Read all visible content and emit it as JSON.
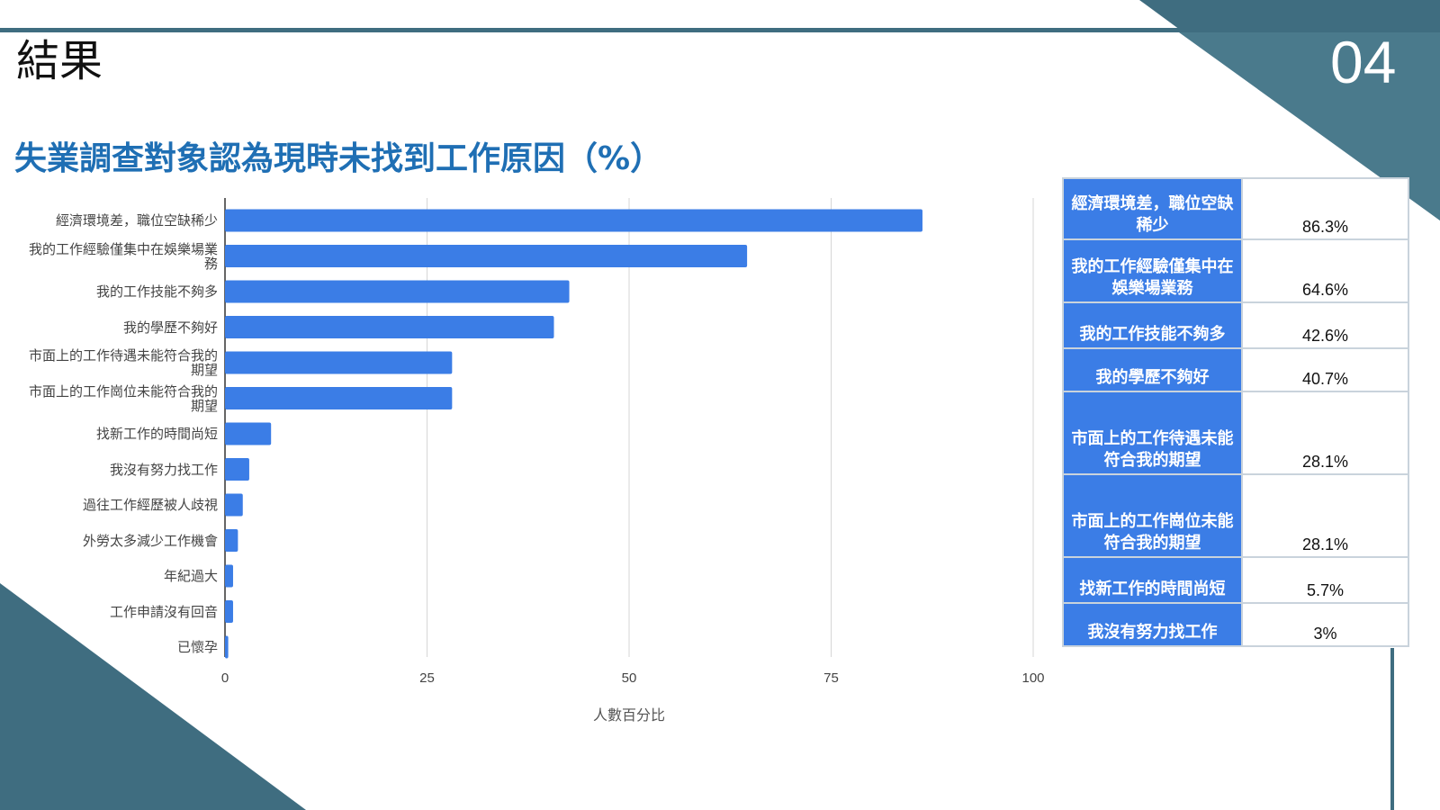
{
  "slide": {
    "title": "結果",
    "number": "04"
  },
  "colors": {
    "accent": "#3f6d80",
    "bar": "#3b7de6",
    "title": "#1f6fb4"
  },
  "chart_data": {
    "type": "bar",
    "orientation": "horizontal",
    "title": "失業調查對象認為現時未找到工作原因（%）",
    "xlabel": "人數百分比",
    "ylabel": "",
    "xlim": [
      0,
      100
    ],
    "xticks": [
      "0",
      "25",
      "50",
      "75",
      "100"
    ],
    "grid": true,
    "categories": [
      "經濟環境差，職位空缺稀少",
      "我的工作經驗僅集中在娛樂場業務",
      "我的工作技能不夠多",
      "我的學歷不夠好",
      "市面上的工作待遇未能符合我的期望",
      "市面上的工作崗位未能符合我的期望",
      "找新工作的時間尚短",
      "我沒有努力找工作",
      "過往工作經歷被人歧視",
      "外勞太多減少工作機會",
      "年紀過大",
      "工作申請沒有回音",
      "已懷孕"
    ],
    "values": [
      86.3,
      64.6,
      42.6,
      40.7,
      28.1,
      28.1,
      5.7,
      3,
      2.2,
      1.6,
      1,
      1,
      0.4
    ]
  },
  "table": {
    "rows": [
      {
        "label": "經濟環境差，職位空缺稀少",
        "value": "86.3%"
      },
      {
        "label": "我的工作經驗僅集中在娛樂場業務",
        "value": "64.6%"
      },
      {
        "label": "我的工作技能不夠多",
        "value": "42.6%"
      },
      {
        "label": "我的學歷不夠好",
        "value": "40.7%"
      },
      {
        "label": "市面上的工作待遇未能符合我的期望",
        "value": "28.1%"
      },
      {
        "label": "市面上的工作崗位未能符合我的期望",
        "value": "28.1%"
      },
      {
        "label": "找新工作的時間尚短",
        "value": "5.7%"
      },
      {
        "label": "我沒有努力找工作",
        "value": "3%"
      }
    ]
  }
}
